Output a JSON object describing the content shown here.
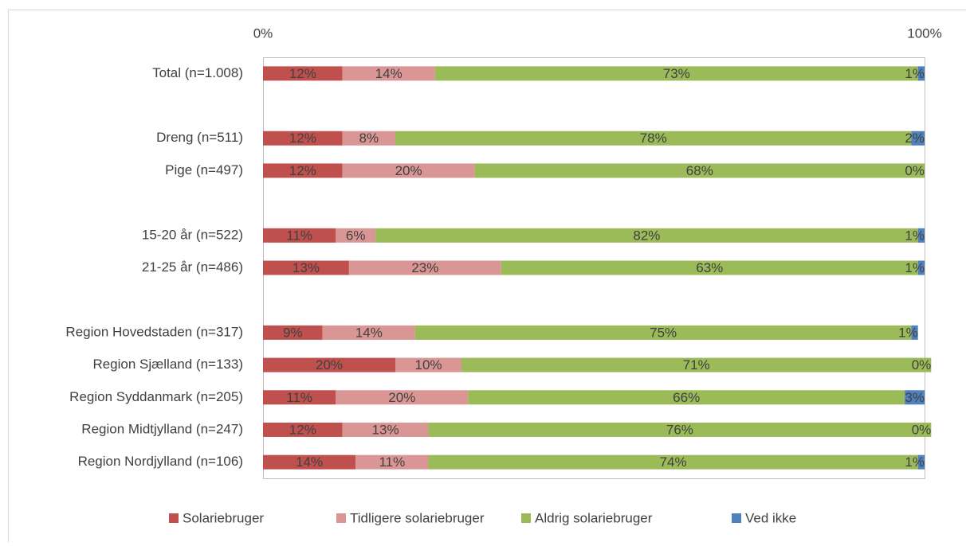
{
  "chart_data": {
    "type": "stacked_barh",
    "categories": [
      "Total (n=1.008)",
      null,
      "Dreng (n=511)",
      "Pige (n=497)",
      null,
      "15-20 år (n=522)",
      "21-25 år (n=486)",
      null,
      "Region Hovedstaden (n=317)",
      "Region Sjælland (n=133)",
      "Region Syddanmark (n=205)",
      "Region Midtjylland (n=247)",
      "Region Nordjylland (n=106)"
    ],
    "series": [
      {
        "name": "Solariebruger",
        "color": "#c0504d",
        "values": [
          12,
          null,
          12,
          12,
          null,
          11,
          13,
          null,
          9,
          20,
          11,
          12,
          14
        ],
        "value_labels": [
          "12%",
          null,
          "12%",
          "12%",
          null,
          "11%",
          "13%",
          null,
          "9%",
          "20%",
          "11%",
          "12%",
          "14%"
        ]
      },
      {
        "name": "Tidligere solariebruger",
        "color": "#d99694",
        "values": [
          14,
          null,
          8,
          20,
          null,
          6,
          23,
          null,
          14,
          10,
          20,
          13,
          11
        ],
        "value_labels": [
          "14%",
          null,
          "8%",
          "20%",
          null,
          "6%",
          "23%",
          null,
          "14%",
          "10%",
          "20%",
          "13%",
          "11%"
        ]
      },
      {
        "name": "Aldrig solariebruger",
        "color": "#9bbb59",
        "values": [
          73,
          null,
          78,
          68,
          null,
          82,
          63,
          null,
          75,
          71,
          66,
          76,
          74
        ],
        "value_labels": [
          "73%",
          null,
          "78%",
          "68%",
          null,
          "82%",
          "63%",
          null,
          "75%",
          "71%",
          "66%",
          "76%",
          "74%"
        ]
      },
      {
        "name": "Ved ikke",
        "color": "#4f81bd",
        "values": [
          1,
          null,
          2,
          0,
          null,
          1,
          1,
          null,
          1,
          0,
          3,
          0,
          1
        ],
        "value_labels": [
          "1%",
          null,
          "2%",
          "0%",
          null,
          "1%",
          "1%",
          null,
          "1%",
          "0%",
          "3%",
          "0%",
          "1%"
        ]
      }
    ],
    "xlim": [
      0,
      100
    ],
    "xticks": [
      {
        "value": 0,
        "label": "0%"
      },
      {
        "value": 100,
        "label": "100%"
      }
    ],
    "legend": "bottom"
  }
}
